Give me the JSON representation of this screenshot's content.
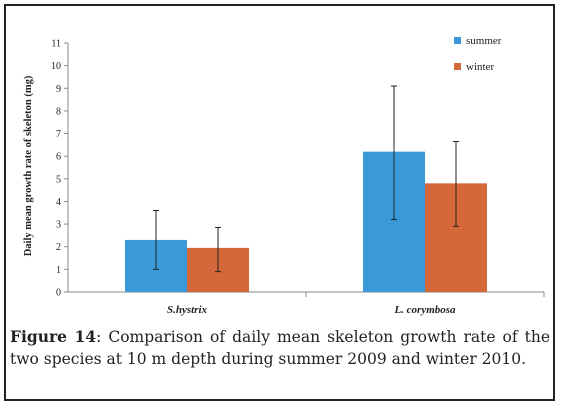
{
  "chart_data": {
    "type": "bar",
    "title": "",
    "xlabel": "",
    "ylabel": "Daily mean growth rate of skeleton (mg)",
    "ylim": [
      0,
      11
    ],
    "yticks": [
      0,
      1,
      2,
      3,
      4,
      5,
      6,
      7,
      8,
      9,
      10,
      11
    ],
    "categories": [
      "S.hystrix",
      "L. corymbosa"
    ],
    "series": [
      {
        "name": "summer",
        "color": "#3a9ad9",
        "values": [
          2.3,
          6.2
        ],
        "error_low": [
          1.0,
          3.2
        ],
        "error_high": [
          3.6,
          9.1
        ]
      },
      {
        "name": "winter",
        "color": "#d4683a",
        "values": [
          1.95,
          4.8
        ],
        "error_low": [
          0.9,
          2.9
        ],
        "error_high": [
          2.85,
          6.65
        ]
      }
    ],
    "legend_position": "top-right",
    "grid": false
  },
  "caption": {
    "label": "Figure 14",
    "text": ": Comparison of daily mean skeleton growth rate of the two species at 10 m depth during summer 2009 and winter 2010."
  }
}
